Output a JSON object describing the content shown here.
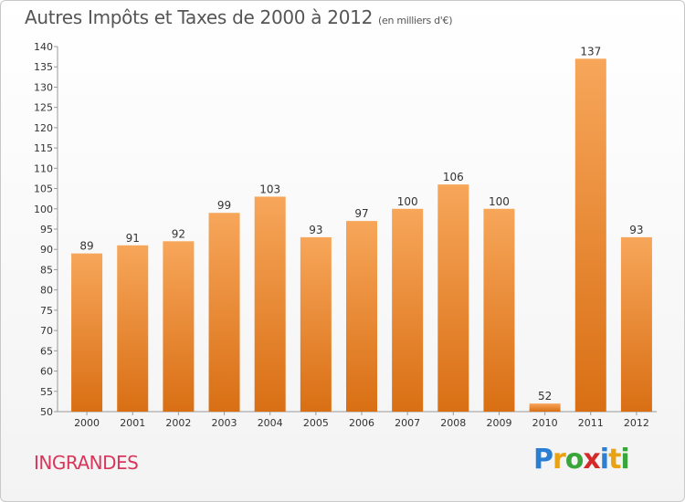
{
  "header": {
    "title": "Autres Impôts et Taxes de 2000 à 2012",
    "subtitle": "(en milliers d'€)"
  },
  "footer": {
    "commune": "INGRANDES",
    "logo_letters": [
      "P",
      "r",
      "o",
      "x",
      "i",
      "t",
      "i"
    ],
    "logo_colors": [
      "#2a7fd4",
      "#e8a213",
      "#3aa53a",
      "#d42a2a",
      "#2a7fd4",
      "#e8a213",
      "#3aa53a"
    ]
  },
  "colors": {
    "bar_light": "#f7a65a",
    "bar_dark": "#d96f14",
    "axis": "#999999",
    "text": "#333333",
    "commune": "#d9365c"
  },
  "chart_data": {
    "type": "bar",
    "title": "Autres Impôts et Taxes de 2000 à 2012",
    "subtitle": "(en milliers d'€)",
    "xlabel": "",
    "ylabel": "",
    "categories": [
      "2000",
      "2001",
      "2002",
      "2003",
      "2004",
      "2005",
      "2006",
      "2007",
      "2008",
      "2009",
      "2010",
      "2011",
      "2012"
    ],
    "values": [
      89,
      91,
      92,
      99,
      103,
      93,
      97,
      100,
      106,
      100,
      52,
      137,
      93
    ],
    "ylim": [
      50,
      140
    ],
    "yticks": [
      50,
      55,
      60,
      65,
      70,
      75,
      80,
      85,
      90,
      95,
      100,
      105,
      110,
      115,
      120,
      125,
      130,
      135,
      140
    ],
    "data_labels": true,
    "grid": false,
    "legend": "none"
  }
}
